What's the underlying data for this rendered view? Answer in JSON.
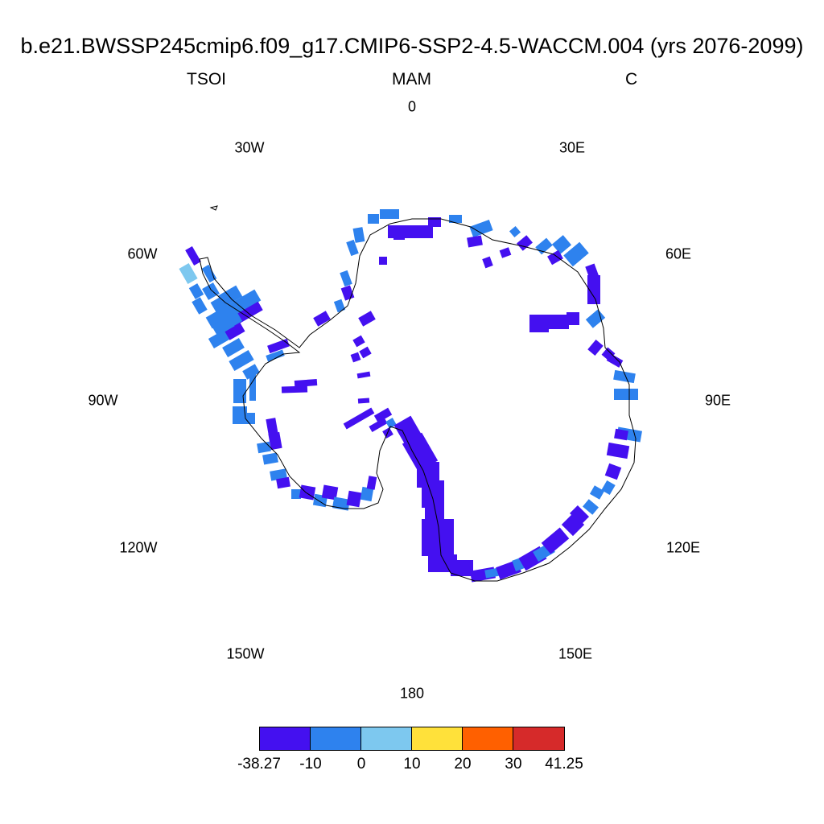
{
  "title": "b.e21.BWSSP245cmip6.f09_g17.CMIP6-SSP2-4.5-WACCM.004 (yrs 2076-2099)",
  "subtitle": {
    "left": "TSOI",
    "center": "MAM",
    "right": "C"
  },
  "longitude_labels": [
    "0",
    "30E",
    "60E",
    "90E",
    "120E",
    "150E",
    "180",
    "150W",
    "120W",
    "90W",
    "60W",
    "30W"
  ],
  "colorbar": {
    "colors": [
      "#4410f0",
      "#2e82ee",
      "#7dc8ef",
      "#ffe13a",
      "#ff6000",
      "#d62a2a"
    ],
    "labels": [
      "-38.27",
      "-10",
      "0",
      "10",
      "20",
      "30",
      "41.25"
    ]
  },
  "chart_data": {
    "type": "heatmap",
    "projection": "south polar stereographic",
    "region": "Antarctica",
    "variable": "TSOI",
    "season": "MAM",
    "units": "C",
    "levels": [
      -38.27,
      -10,
      0,
      10,
      20,
      30,
      41.25
    ],
    "dominant_classes": [
      "-38.27 to -10",
      "-10 to 0"
    ],
    "minor_classes": [
      "0 to 10"
    ]
  }
}
